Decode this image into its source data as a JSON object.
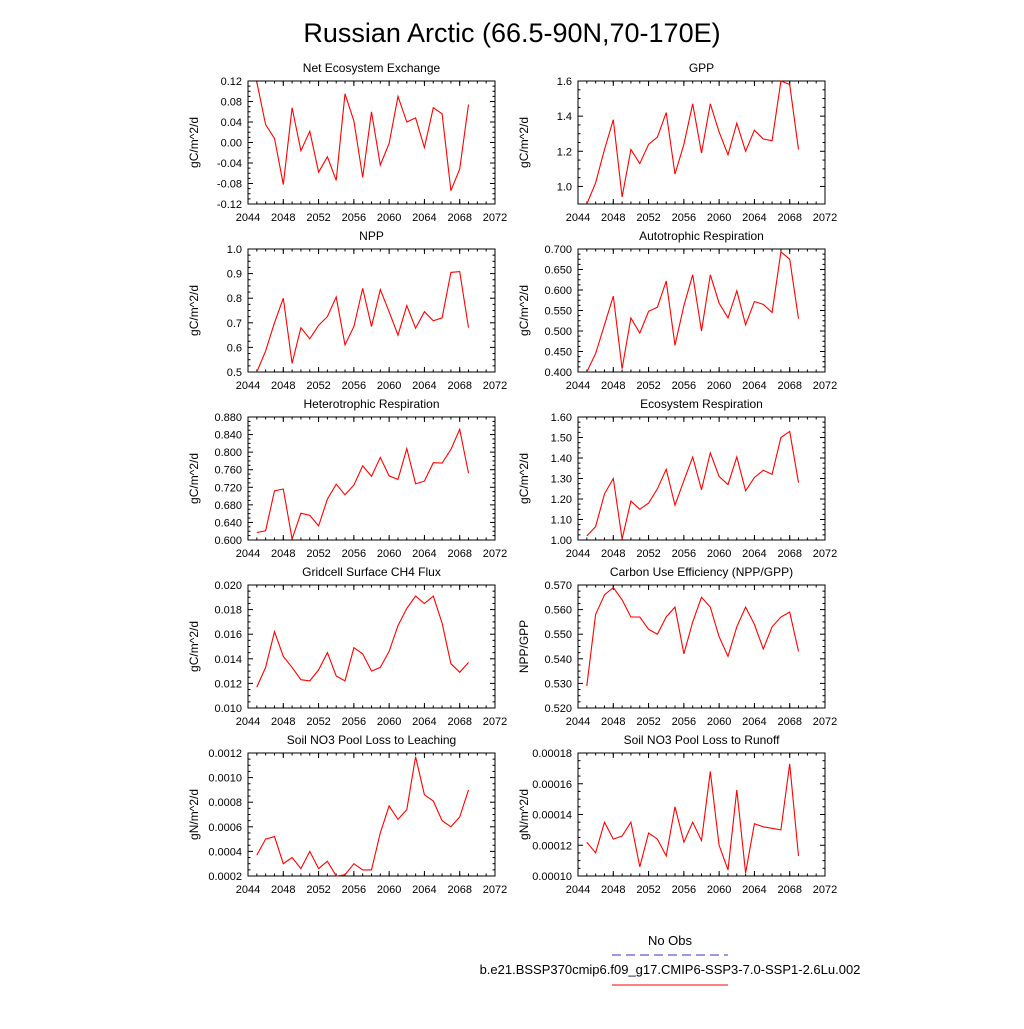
{
  "title": "Russian Arctic (66.5-90N,70-170E)",
  "legend": {
    "obs_label": "No Obs",
    "model_label": "b.e21.BSSP370cmip6.f09_g17.CMIP6-SSP3-7.0-SSP1-2.6Lu.002",
    "obs_color": "#3333cc",
    "model_color": "#ff0000"
  },
  "chart_data": [
    {
      "type": "line",
      "title": "Net Ecosystem Exchange",
      "ylabel": "gC/m^2/d",
      "xlim": [
        2044,
        2072
      ],
      "xticks": [
        "2044",
        "2048",
        "2052",
        "2056",
        "2060",
        "2064",
        "2068",
        "2072"
      ],
      "ylim": [
        -0.12,
        0.12
      ],
      "yticks": [
        "-0.12",
        "-0.08",
        "-0.04",
        "0.00",
        "0.04",
        "0.08",
        "0.12"
      ],
      "x": [
        2045,
        2046,
        2047,
        2048,
        2049,
        2050,
        2051,
        2052,
        2053,
        2054,
        2055,
        2056,
        2057,
        2058,
        2059,
        2060,
        2061,
        2062,
        2063,
        2064,
        2065,
        2066,
        2067,
        2068,
        2069
      ],
      "series": [
        {
          "values": [
            0.118,
            0.035,
            0.008,
            -0.082,
            0.068,
            -0.016,
            0.022,
            -0.058,
            -0.028,
            -0.074,
            0.095,
            0.042,
            -0.068,
            0.06,
            -0.044,
            -0.002,
            0.09,
            0.04,
            0.048,
            -0.01,
            0.068,
            0.056,
            -0.094,
            -0.052,
            0.074
          ]
        }
      ]
    },
    {
      "type": "line",
      "title": "GPP",
      "ylabel": "gC/m^2/d",
      "xlim": [
        2044,
        2072
      ],
      "xticks": [
        "2044",
        "2048",
        "2052",
        "2056",
        "2060",
        "2064",
        "2068",
        "2072"
      ],
      "ylim": [
        0.9,
        1.6
      ],
      "yticks": [
        "1.0",
        "1.2",
        "1.4",
        "1.6"
      ],
      "x": [
        2045,
        2046,
        2047,
        2048,
        2049,
        2050,
        2051,
        2052,
        2053,
        2054,
        2055,
        2056,
        2057,
        2058,
        2059,
        2060,
        2061,
        2062,
        2063,
        2064,
        2065,
        2066,
        2067,
        2068,
        2069
      ],
      "series": [
        {
          "values": [
            0.9,
            1.02,
            1.21,
            1.38,
            0.94,
            1.21,
            1.13,
            1.24,
            1.28,
            1.42,
            1.07,
            1.24,
            1.47,
            1.19,
            1.47,
            1.31,
            1.18,
            1.36,
            1.2,
            1.32,
            1.27,
            1.26,
            1.6,
            1.58,
            1.21
          ]
        }
      ]
    },
    {
      "type": "line",
      "title": "NPP",
      "ylabel": "gC/m^2/d",
      "xlim": [
        2044,
        2072
      ],
      "xticks": [
        "2044",
        "2048",
        "2052",
        "2056",
        "2060",
        "2064",
        "2068",
        "2072"
      ],
      "ylim": [
        0.5,
        1.0
      ],
      "yticks": [
        "0.5",
        "0.6",
        "0.7",
        "0.8",
        "0.9",
        "1.0"
      ],
      "x": [
        2045,
        2046,
        2047,
        2048,
        2049,
        2050,
        2051,
        2052,
        2053,
        2054,
        2055,
        2056,
        2057,
        2058,
        2059,
        2060,
        2061,
        2062,
        2063,
        2064,
        2065,
        2066,
        2067,
        2068,
        2069
      ],
      "series": [
        {
          "values": [
            0.5,
            0.585,
            0.7,
            0.8,
            0.535,
            0.68,
            0.635,
            0.69,
            0.725,
            0.805,
            0.61,
            0.685,
            0.84,
            0.685,
            0.835,
            0.745,
            0.65,
            0.77,
            0.678,
            0.745,
            0.708,
            0.72,
            0.905,
            0.908,
            0.68
          ]
        }
      ]
    },
    {
      "type": "line",
      "title": "Autotrophic Respiration",
      "ylabel": "gC/m^2/d",
      "xlim": [
        2044,
        2072
      ],
      "xticks": [
        "2044",
        "2048",
        "2052",
        "2056",
        "2060",
        "2064",
        "2068",
        "2072"
      ],
      "ylim": [
        0.4,
        0.7
      ],
      "yticks": [
        "0.400",
        "0.450",
        "0.500",
        "0.550",
        "0.600",
        "0.650",
        "0.700"
      ],
      "x": [
        2045,
        2046,
        2047,
        2048,
        2049,
        2050,
        2051,
        2052,
        2053,
        2054,
        2055,
        2056,
        2057,
        2058,
        2059,
        2060,
        2061,
        2062,
        2063,
        2064,
        2065,
        2066,
        2067,
        2068,
        2069
      ],
      "series": [
        {
          "values": [
            0.4,
            0.445,
            0.515,
            0.585,
            0.408,
            0.532,
            0.495,
            0.548,
            0.558,
            0.622,
            0.465,
            0.562,
            0.637,
            0.5,
            0.637,
            0.568,
            0.532,
            0.598,
            0.515,
            0.572,
            0.565,
            0.545,
            0.693,
            0.675,
            0.53
          ]
        }
      ]
    },
    {
      "type": "line",
      "title": "Heterotrophic Respiration",
      "ylabel": "gC/m^2/d",
      "xlim": [
        2044,
        2072
      ],
      "xticks": [
        "2044",
        "2048",
        "2052",
        "2056",
        "2060",
        "2064",
        "2068",
        "2072"
      ],
      "ylim": [
        0.6,
        0.88
      ],
      "yticks": [
        "0.600",
        "0.640",
        "0.680",
        "0.720",
        "0.760",
        "0.800",
        "0.840",
        "0.880"
      ],
      "x": [
        2045,
        2046,
        2047,
        2048,
        2049,
        2050,
        2051,
        2052,
        2053,
        2054,
        2055,
        2056,
        2057,
        2058,
        2059,
        2060,
        2061,
        2062,
        2063,
        2064,
        2065,
        2066,
        2067,
        2068,
        2069
      ],
      "series": [
        {
          "values": [
            0.617,
            0.621,
            0.712,
            0.716,
            0.602,
            0.661,
            0.656,
            0.632,
            0.693,
            0.727,
            0.703,
            0.725,
            0.769,
            0.745,
            0.788,
            0.746,
            0.738,
            0.808,
            0.728,
            0.734,
            0.776,
            0.775,
            0.806,
            0.852,
            0.752
          ]
        }
      ]
    },
    {
      "type": "line",
      "title": "Ecosystem Respiration",
      "ylabel": "gC/m^2/d",
      "xlim": [
        2044,
        2072
      ],
      "xticks": [
        "2044",
        "2048",
        "2052",
        "2056",
        "2060",
        "2064",
        "2068",
        "2072"
      ],
      "ylim": [
        1.0,
        1.6
      ],
      "yticks": [
        "1.00",
        "1.10",
        "1.20",
        "1.30",
        "1.40",
        "1.50",
        "1.60"
      ],
      "x": [
        2045,
        2046,
        2047,
        2048,
        2049,
        2050,
        2051,
        2052,
        2053,
        2054,
        2055,
        2056,
        2057,
        2058,
        2059,
        2060,
        2061,
        2062,
        2063,
        2064,
        2065,
        2066,
        2067,
        2068,
        2069
      ],
      "series": [
        {
          "values": [
            1.02,
            1.065,
            1.225,
            1.3,
            1.005,
            1.19,
            1.15,
            1.18,
            1.25,
            1.345,
            1.17,
            1.29,
            1.405,
            1.245,
            1.425,
            1.31,
            1.27,
            1.405,
            1.24,
            1.305,
            1.34,
            1.32,
            1.5,
            1.53,
            1.28
          ]
        }
      ]
    },
    {
      "type": "line",
      "title": "Gridcell Surface CH4 Flux",
      "ylabel": "gC/m^2/d",
      "xlim": [
        2044,
        2072
      ],
      "xticks": [
        "2044",
        "2048",
        "2052",
        "2056",
        "2060",
        "2064",
        "2068",
        "2072"
      ],
      "ylim": [
        0.01,
        0.02
      ],
      "yticks": [
        "0.010",
        "0.012",
        "0.014",
        "0.016",
        "0.018",
        "0.020"
      ],
      "x": [
        2045,
        2046,
        2047,
        2048,
        2049,
        2050,
        2051,
        2052,
        2053,
        2054,
        2055,
        2056,
        2057,
        2058,
        2059,
        2060,
        2061,
        2062,
        2063,
        2064,
        2065,
        2066,
        2067,
        2068,
        2069
      ],
      "series": [
        {
          "values": [
            0.0117,
            0.0133,
            0.0162,
            0.0142,
            0.0133,
            0.0123,
            0.0122,
            0.0131,
            0.0145,
            0.0126,
            0.0122,
            0.0149,
            0.0144,
            0.013,
            0.0133,
            0.0146,
            0.0167,
            0.0181,
            0.0191,
            0.0185,
            0.0191,
            0.0169,
            0.0136,
            0.0129,
            0.0137
          ]
        }
      ]
    },
    {
      "type": "line",
      "title": "Carbon Use Efficiency (NPP/GPP)",
      "ylabel": "NPP/GPP",
      "xlim": [
        2044,
        2072
      ],
      "xticks": [
        "2044",
        "2048",
        "2052",
        "2056",
        "2060",
        "2064",
        "2068",
        "2072"
      ],
      "ylim": [
        0.52,
        0.57
      ],
      "yticks": [
        "0.520",
        "0.530",
        "0.540",
        "0.550",
        "0.560",
        "0.570"
      ],
      "x": [
        2045,
        2046,
        2047,
        2048,
        2049,
        2050,
        2051,
        2052,
        2053,
        2054,
        2055,
        2056,
        2057,
        2058,
        2059,
        2060,
        2061,
        2062,
        2063,
        2064,
        2065,
        2066,
        2067,
        2068,
        2069
      ],
      "series": [
        {
          "values": [
            0.529,
            0.558,
            0.566,
            0.569,
            0.564,
            0.557,
            0.557,
            0.552,
            0.55,
            0.557,
            0.561,
            0.542,
            0.555,
            0.565,
            0.561,
            0.549,
            0.541,
            0.553,
            0.561,
            0.554,
            0.544,
            0.553,
            0.557,
            0.559,
            0.543
          ]
        }
      ]
    },
    {
      "type": "line",
      "title": "Soil NO3 Pool Loss to Leaching",
      "ylabel": "gN/m^2/d",
      "xlim": [
        2044,
        2072
      ],
      "xticks": [
        "2044",
        "2048",
        "2052",
        "2056",
        "2060",
        "2064",
        "2068",
        "2072"
      ],
      "ylim": [
        0.0002,
        0.0012
      ],
      "yticks": [
        "0.0002",
        "0.0004",
        "0.0006",
        "0.0008",
        "0.0010",
        "0.0012"
      ],
      "x": [
        2045,
        2046,
        2047,
        2048,
        2049,
        2050,
        2051,
        2052,
        2053,
        2054,
        2055,
        2056,
        2057,
        2058,
        2059,
        2060,
        2061,
        2062,
        2063,
        2064,
        2065,
        2066,
        2067,
        2068,
        2069
      ],
      "series": [
        {
          "values": [
            0.00037,
            0.0005,
            0.00052,
            0.0003,
            0.00035,
            0.00026,
            0.0004,
            0.00026,
            0.00032,
            0.0002,
            0.00021,
            0.0003,
            0.00025,
            0.00025,
            0.00055,
            0.00077,
            0.00066,
            0.00074,
            0.00117,
            0.00086,
            0.00081,
            0.00065,
            0.0006,
            0.00068,
            0.0009
          ]
        }
      ]
    },
    {
      "type": "line",
      "title": "Soil NO3 Pool Loss to Runoff",
      "ylabel": "gN/m^2/d",
      "xlim": [
        2044,
        2072
      ],
      "xticks": [
        "2044",
        "2048",
        "2052",
        "2056",
        "2060",
        "2064",
        "2068",
        "2072"
      ],
      "ylim": [
        0.0001,
        0.00018
      ],
      "yticks": [
        "0.00010",
        "0.00012",
        "0.00014",
        "0.00016",
        "0.00018"
      ],
      "x": [
        2045,
        2046,
        2047,
        2048,
        2049,
        2050,
        2051,
        2052,
        2053,
        2054,
        2055,
        2056,
        2057,
        2058,
        2059,
        2060,
        2061,
        2062,
        2063,
        2064,
        2065,
        2066,
        2067,
        2068,
        2069
      ],
      "series": [
        {
          "values": [
            0.000122,
            0.000115,
            0.000135,
            0.000124,
            0.000126,
            0.000135,
            0.000106,
            0.000128,
            0.000124,
            0.000113,
            0.000145,
            0.000122,
            0.000135,
            0.000123,
            0.000168,
            0.00012,
            0.000104,
            0.000156,
            0.000102,
            0.000134,
            0.000132,
            0.000131,
            0.00013,
            0.000173,
            0.000113
          ]
        }
      ]
    }
  ]
}
